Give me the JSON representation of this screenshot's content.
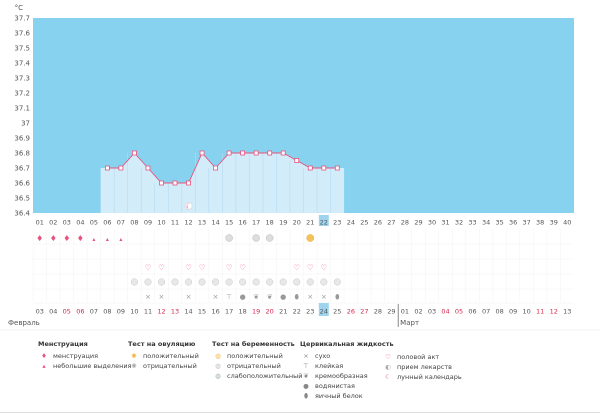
{
  "chart_data": {
    "type": "area",
    "unit_label": "°C",
    "ylim": [
      36.4,
      37.7
    ],
    "y_ticks": [
      "37.7",
      "37.6",
      "37.5",
      "37.4",
      "37.3",
      "37.2",
      "37.1",
      "37",
      "36.9",
      "36.8",
      "36.7",
      "36.6",
      "36.5",
      "36.4"
    ],
    "cycle_days": [
      "01",
      "02",
      "03",
      "04",
      "05",
      "06",
      "07",
      "08",
      "09",
      "10",
      "11",
      "12",
      "13",
      "14",
      "15",
      "16",
      "17",
      "18",
      "19",
      "20",
      "21",
      "22",
      "23",
      "24",
      "25",
      "26",
      "27",
      "28",
      "29",
      "30",
      "31",
      "32",
      "33",
      "34",
      "35",
      "36",
      "37",
      "38",
      "39",
      "40"
    ],
    "current_cycle_day": "22",
    "temperatures": [
      {
        "day": 6,
        "value": 36.7
      },
      {
        "day": 7,
        "value": 36.7
      },
      {
        "day": 8,
        "value": 36.8
      },
      {
        "day": 9,
        "value": 36.7
      },
      {
        "day": 10,
        "value": 36.6
      },
      {
        "day": 11,
        "value": 36.6
      },
      {
        "day": 12,
        "value": 36.6
      },
      {
        "day": 13,
        "value": 36.8
      },
      {
        "day": 14,
        "value": 36.7
      },
      {
        "day": 15,
        "value": 36.8
      },
      {
        "day": 16,
        "value": 36.8
      },
      {
        "day": 17,
        "value": 36.8
      },
      {
        "day": 18,
        "value": 36.8
      },
      {
        "day": 19,
        "value": 36.8
      },
      {
        "day": 20,
        "value": 36.75
      },
      {
        "day": 21,
        "value": 36.7
      },
      {
        "day": 22,
        "value": 36.7
      },
      {
        "day": 23,
        "value": 36.7
      }
    ],
    "dates": [
      "03",
      "04",
      "05",
      "06",
      "07",
      "08",
      "09",
      "10",
      "11",
      "12",
      "13",
      "14",
      "15",
      "16",
      "17",
      "18",
      "19",
      "20",
      "21",
      "22",
      "23",
      "24",
      "25",
      "26",
      "27",
      "28",
      "29",
      "01",
      "02",
      "03",
      "04",
      "05",
      "06",
      "07",
      "08",
      "09",
      "10",
      "11",
      "12",
      "13"
    ],
    "weekend_dates": [
      2,
      3,
      9,
      10,
      16,
      17,
      23,
      24,
      30,
      31,
      37,
      38
    ],
    "current_date_index": 21,
    "month_labels": [
      {
        "label": "Февраль",
        "index": 0
      },
      {
        "label": "Март",
        "index": 27
      }
    ],
    "markers": {
      "menstruation_heavy": [
        1,
        2,
        3,
        4
      ],
      "menstruation_light": [
        5,
        6,
        7
      ],
      "moon": [
        12
      ],
      "ovulation_negative": [
        15,
        17,
        18
      ],
      "ovulation_positive": [
        21
      ],
      "intercourse": [
        9,
        10,
        12,
        13,
        15,
        16,
        20,
        21,
        22
      ],
      "medication": [
        8,
        9,
        10,
        11,
        12,
        13,
        14,
        15,
        16,
        17,
        18,
        19,
        20,
        21,
        22,
        23
      ],
      "fluid": {
        "9": "dry",
        "10": "dry",
        "12": "dry",
        "14": "dry",
        "15": "sticky",
        "16": "water",
        "17": "creamy",
        "18": "creamy",
        "19": "water",
        "20": "egg",
        "21": "dry",
        "22": "dry",
        "23": "egg"
      }
    }
  },
  "legend": {
    "menses": {
      "title": "Менструация",
      "items": [
        "менструация",
        "небольшие выделения"
      ]
    },
    "ovulation": {
      "title": "Тест на овуляцию",
      "items": [
        "положительный",
        "отрицательный"
      ]
    },
    "pregnancy": {
      "title": "Тест на беременность",
      "items": [
        "положительный",
        "отрицательный",
        "слабоположительный"
      ]
    },
    "fluid": {
      "title": "Цервикальная жидкость",
      "items": [
        "сухо",
        "клейкая",
        "кремообразная",
        "водянистая",
        "яичный белок"
      ]
    },
    "other": {
      "items": [
        "половой акт",
        "прием лекарств",
        "лунный календарь"
      ]
    },
    "colors": {
      "plot_bg": "#87d3ef",
      "bar_fill": "#d2ecfa",
      "line": "#e8537e",
      "weekend": "#d2264a",
      "current": "#9fd4ef"
    }
  }
}
